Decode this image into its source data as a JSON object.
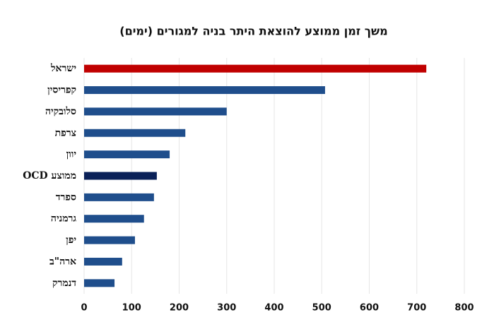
{
  "chart_data": {
    "type": "bar",
    "orientation": "horizontal",
    "title": "משך זמן ממוצע להוצאת היתר בניה למגורים (ימים)",
    "categories": [
      "ישראל",
      "קפריסין",
      "סלובקיה",
      "צרפת",
      "יוון",
      "ממוצע OCD",
      "ספרד",
      "גרמניה",
      "יפן",
      "ארה\"ב",
      "דנמרק"
    ],
    "values": [
      720,
      507,
      300,
      213,
      180,
      153,
      147,
      126,
      107,
      80,
      64
    ],
    "colors": [
      "#c00000",
      "#1f4e8c",
      "#1f4e8c",
      "#1f4e8c",
      "#1f4e8c",
      "#0a2158",
      "#1f4e8c",
      "#1f4e8c",
      "#1f4e8c",
      "#1f4e8c",
      "#1f4e8c"
    ],
    "xlim": [
      0,
      800
    ],
    "xticks": [
      0,
      100,
      200,
      300,
      400,
      500,
      600,
      700,
      800
    ],
    "grid": true
  }
}
